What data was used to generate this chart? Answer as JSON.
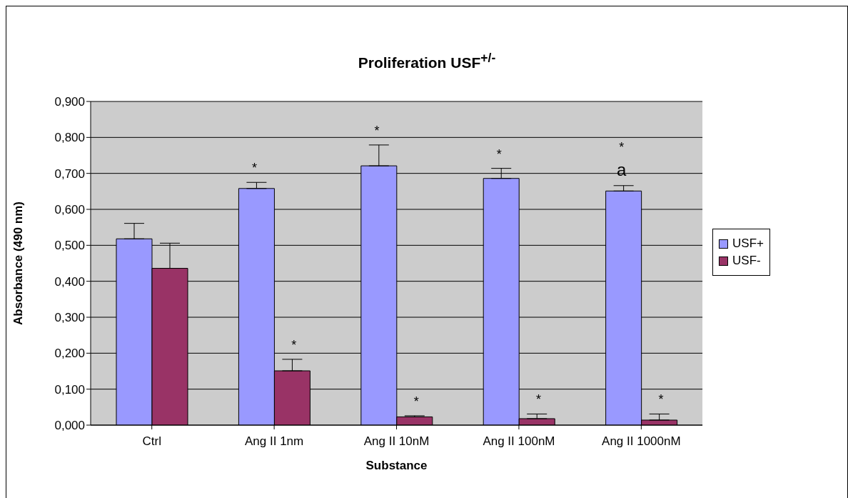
{
  "chart_data": {
    "type": "bar",
    "title": "Proliferation USF$^{+/-}$",
    "xlabel": "Substance",
    "ylabel": "Absorbance (490 nm)",
    "categories": [
      "Ctrl",
      "Ang II 1nm",
      "Ang II 10nM",
      "Ang II 100nM",
      "Ang II 1000nM"
    ],
    "series": [
      {
        "name": "USF+",
        "color": "#9999ff",
        "values": [
          0.518,
          0.658,
          0.721,
          0.686,
          0.651
        ],
        "errors": [
          [
            0.518,
            0.561
          ],
          [
            0.658,
            0.675
          ],
          [
            0.721,
            0.779
          ],
          [
            0.686,
            0.714
          ],
          [
            0.651,
            0.666
          ]
        ]
      },
      {
        "name": "USF-",
        "color": "#993366",
        "values": [
          0.436,
          0.151,
          0.023,
          0.018,
          0.014
        ],
        "errors": [
          [
            0.436,
            0.506
          ],
          [
            0.151,
            0.183
          ],
          [
            0.023,
            0.026
          ],
          [
            0.018,
            0.031
          ],
          [
            0.014,
            0.031
          ]
        ]
      }
    ],
    "ylim": [
      0,
      0.9
    ],
    "yticks": [
      {
        "value": 0,
        "label": "0,000"
      },
      {
        "value": 0.1,
        "label": "0,100"
      },
      {
        "value": 0.2,
        "label": "0,200"
      },
      {
        "value": 0.3,
        "label": "0,300"
      },
      {
        "value": 0.4,
        "label": "0,400"
      },
      {
        "value": 0.5,
        "label": "0,500"
      },
      {
        "value": 0.6,
        "label": "0,600"
      },
      {
        "value": 0.7,
        "label": "0,700"
      },
      {
        "value": 0.8,
        "label": "0,800"
      },
      {
        "value": 0.9,
        "label": "0,900"
      }
    ],
    "grid": "y",
    "legend": "right",
    "annotations": [
      {
        "text": "*",
        "x": "Ang II 1nm",
        "y": 0.658
      },
      {
        "text": "*",
        "x": "Ang II 1nm",
        "y": 0.151
      },
      {
        "text": "*",
        "x": "Ang II 10nM",
        "y": 0.721
      },
      {
        "text": "*",
        "x": "Ang II 10nM",
        "y": 0.023
      },
      {
        "text": "*",
        "x": "Ang II 100nM",
        "y": 0.686
      },
      {
        "text": "*",
        "x": "Ang II 100nM",
        "y": 0.018
      },
      {
        "text": "*\na",
        "x": "Ang II 1000nM",
        "y": 0.651
      },
      {
        "text": "*",
        "x": "Ang II 1000nM",
        "y": 0.014
      }
    ]
  }
}
